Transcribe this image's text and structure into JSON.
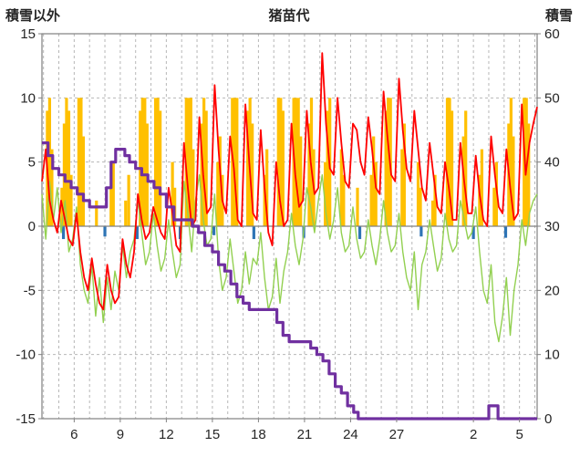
{
  "chart_data": {
    "type": "line",
    "title": "猪苗代",
    "left_axis": {
      "title": "積雪以外",
      "min": -15,
      "max": 15,
      "ticks": [
        15,
        10,
        5,
        0,
        -5,
        -10,
        -15
      ]
    },
    "right_axis": {
      "title": "積雪",
      "min": 0,
      "max": 60,
      "ticks": [
        60,
        50,
        40,
        30,
        20,
        10,
        0
      ]
    },
    "x_axis": {
      "day_min": 3.9,
      "day_max": 36.15,
      "tick_days": [
        6,
        9,
        12,
        15,
        18,
        21,
        24,
        27,
        32,
        35
      ],
      "tick_labels": [
        "6",
        "9",
        "12",
        "15",
        "18",
        "21",
        "24",
        "27",
        "2",
        "5"
      ],
      "grid_day_from": 4,
      "grid_day_to": 36
    },
    "style": {
      "grid_color": "#b7b7b7",
      "axis_color": "#808080",
      "text_color": "#262626",
      "background": "#ffffff"
    },
    "series": [
      {
        "name": "sunshine-bars",
        "color": "#FFC000",
        "axis": "left",
        "type": "bar",
        "bar_width": 3.2,
        "bars": [
          [
            4.25,
            9
          ],
          [
            4.4,
            10
          ],
          [
            4.55,
            6
          ],
          [
            5.2,
            3
          ],
          [
            5.35,
            8
          ],
          [
            5.5,
            10
          ],
          [
            5.65,
            9
          ],
          [
            5.8,
            4
          ],
          [
            6.3,
            10
          ],
          [
            6.45,
            10
          ],
          [
            6.6,
            7
          ],
          [
            7.45,
            2
          ],
          [
            8.4,
            3
          ],
          [
            8.55,
            5
          ],
          [
            9.35,
            2
          ],
          [
            9.55,
            4
          ],
          [
            10.3,
            9
          ],
          [
            10.45,
            10
          ],
          [
            10.6,
            10
          ],
          [
            10.75,
            8
          ],
          [
            11.3,
            10
          ],
          [
            11.45,
            10
          ],
          [
            11.6,
            9
          ],
          [
            12.4,
            5
          ],
          [
            12.55,
            3
          ],
          [
            13.3,
            10
          ],
          [
            13.45,
            10
          ],
          [
            13.6,
            10
          ],
          [
            13.75,
            6
          ],
          [
            14.3,
            8
          ],
          [
            14.45,
            10
          ],
          [
            14.6,
            9
          ],
          [
            15.35,
            5
          ],
          [
            15.5,
            7
          ],
          [
            15.65,
            4
          ],
          [
            16.3,
            10
          ],
          [
            16.45,
            10
          ],
          [
            16.6,
            10
          ],
          [
            17.3,
            9
          ],
          [
            17.45,
            10
          ],
          [
            17.6,
            8
          ],
          [
            18.4,
            4
          ],
          [
            18.55,
            6
          ],
          [
            19.3,
            10
          ],
          [
            19.45,
            10
          ],
          [
            19.6,
            9
          ],
          [
            20.3,
            10
          ],
          [
            20.45,
            10
          ],
          [
            20.6,
            10
          ],
          [
            20.75,
            7
          ],
          [
            21.3,
            8
          ],
          [
            21.45,
            10
          ],
          [
            21.6,
            6
          ],
          [
            22.35,
            5
          ],
          [
            22.5,
            9
          ],
          [
            22.65,
            10
          ],
          [
            23.4,
            6
          ],
          [
            23.55,
            4
          ],
          [
            24.45,
            3
          ],
          [
            25.35,
            4
          ],
          [
            25.5,
            7
          ],
          [
            25.65,
            5
          ],
          [
            26.3,
            9
          ],
          [
            26.45,
            10
          ],
          [
            26.6,
            10
          ],
          [
            27.35,
            6
          ],
          [
            27.5,
            8
          ],
          [
            28.4,
            5
          ],
          [
            28.55,
            3
          ],
          [
            29.35,
            2
          ],
          [
            29.5,
            4
          ],
          [
            30.3,
            10
          ],
          [
            30.45,
            10
          ],
          [
            30.6,
            9
          ],
          [
            31.35,
            7
          ],
          [
            31.5,
            9
          ],
          [
            32.4,
            4
          ],
          [
            32.55,
            6
          ],
          [
            33.35,
            3
          ],
          [
            33.5,
            5
          ],
          [
            34.3,
            8
          ],
          [
            34.45,
            10
          ],
          [
            34.6,
            7
          ],
          [
            35.3,
            10
          ],
          [
            35.45,
            10
          ],
          [
            35.6,
            8
          ]
        ]
      },
      {
        "name": "precip-bars",
        "color": "#2E74B5",
        "axis": "left",
        "type": "bar",
        "bar_width": 3.2,
        "bars": [
          [
            5.3,
            -1
          ],
          [
            8.0,
            -0.8
          ],
          [
            10.1,
            -1
          ],
          [
            12.9,
            -1
          ],
          [
            15.1,
            -0.7
          ],
          [
            17.7,
            -1
          ],
          [
            20.95,
            -0.9
          ],
          [
            24.6,
            -1
          ],
          [
            28.6,
            -0.8
          ],
          [
            32.0,
            -1
          ],
          [
            34.1,
            -0.9
          ]
        ]
      },
      {
        "name": "green-line",
        "color": "#92D050",
        "axis": "left",
        "type": "line",
        "width": 1.4,
        "x0": 3.9,
        "dx": 0.25,
        "y": [
          2.5,
          -1.0,
          3.5,
          0.5,
          3.0,
          -0.5,
          2.0,
          -2.0,
          -1.0,
          1.5,
          -3.0,
          -5.0,
          -6.0,
          -3.0,
          -7.0,
          -4.0,
          -7.5,
          -4.0,
          -6.5,
          -3.5,
          -5.0,
          -1.5,
          -4.0,
          -2.0,
          -1.0,
          2.0,
          -0.5,
          -3.0,
          -2.0,
          1.0,
          -1.5,
          -3.5,
          -2.5,
          0.5,
          -2.0,
          -4.0,
          -3.0,
          3.5,
          1.0,
          -2.0,
          2.0,
          4.0,
          0.5,
          -1.5,
          -1.0,
          2.5,
          -2.5,
          -5.0,
          -4.0,
          -1.0,
          -3.5,
          -6.0,
          -5.0,
          -2.0,
          -4.5,
          -2.5,
          -3.0,
          -0.5,
          -4.0,
          -6.5,
          -5.5,
          -2.5,
          -6.0,
          -3.5,
          -2.0,
          1.0,
          -1.5,
          -3.0,
          -1.0,
          3.0,
          1.5,
          -0.5,
          2.0,
          4.0,
          1.0,
          -1.0,
          0.5,
          3.0,
          -0.5,
          -2.0,
          -1.5,
          1.5,
          -1.0,
          -2.5,
          -2.0,
          0.5,
          -1.5,
          -3.0,
          -1.0,
          2.0,
          -0.5,
          -2.0,
          -1.5,
          1.0,
          -2.0,
          -4.0,
          -5.0,
          -2.0,
          -6.5,
          -3.0,
          -2.0,
          0.5,
          -1.5,
          -3.5,
          -2.5,
          1.0,
          -1.0,
          -2.0,
          -1.5,
          2.0,
          0.5,
          -1.0,
          -0.5,
          1.5,
          -2.0,
          -5.0,
          -6.0,
          -3.0,
          -7.5,
          -9.0,
          -7.0,
          -4.0,
          -8.5,
          -5.0,
          -3.0,
          0.5,
          -1.5,
          1.0,
          2.0,
          2.5
        ]
      },
      {
        "name": "temperature-line",
        "color": "#FF0000",
        "axis": "left",
        "type": "line",
        "width": 1.8,
        "x0": 3.9,
        "dx": 0.25,
        "y": [
          3.5,
          6.0,
          2.0,
          0.5,
          -0.5,
          2.0,
          0.5,
          -1.0,
          -1.5,
          1.0,
          -2.0,
          -4.0,
          -5.0,
          -2.5,
          -4.5,
          -6.0,
          -6.5,
          -3.0,
          -5.0,
          -6.0,
          -5.5,
          -1.0,
          -3.0,
          -4.0,
          -2.0,
          2.5,
          0.5,
          -1.0,
          -0.5,
          1.5,
          0.5,
          -0.5,
          -1.0,
          3.0,
          1.0,
          -1.5,
          -2.0,
          6.5,
          3.0,
          0.0,
          0.5,
          8.5,
          4.0,
          1.0,
          1.5,
          11.0,
          6.0,
          2.0,
          1.0,
          7.0,
          4.5,
          0.5,
          0.0,
          9.5,
          5.0,
          1.0,
          0.5,
          7.5,
          3.0,
          -0.5,
          -1.5,
          5.0,
          2.0,
          0.0,
          0.5,
          8.0,
          4.0,
          1.5,
          2.0,
          9.0,
          5.0,
          2.5,
          3.0,
          13.5,
          8.0,
          4.5,
          4.0,
          10.0,
          6.5,
          3.5,
          3.0,
          8.0,
          7.5,
          5.0,
          4.0,
          8.5,
          6.0,
          3.0,
          2.5,
          10.5,
          7.0,
          4.0,
          3.5,
          11.5,
          7.5,
          4.5,
          3.5,
          9.0,
          6.0,
          3.0,
          2.0,
          6.5,
          4.0,
          1.5,
          1.0,
          5.0,
          3.0,
          0.5,
          0.5,
          6.5,
          3.5,
          1.0,
          1.0,
          5.5,
          2.5,
          0.5,
          0.0,
          7.0,
          4.0,
          1.5,
          1.0,
          6.0,
          3.0,
          0.5,
          1.0,
          9.5,
          4.0,
          6.5,
          8.0,
          9.3
        ]
      },
      {
        "name": "snow-depth-line",
        "color": "#7030A0",
        "axis": "right",
        "type": "step",
        "width": 3.2,
        "x": [
          3.9,
          4.3,
          4.6,
          5.0,
          5.4,
          5.8,
          6.2,
          6.6,
          7.0,
          7.8,
          8.1,
          8.4,
          8.7,
          9.3,
          9.6,
          10.0,
          10.4,
          10.8,
          11.2,
          11.6,
          12.0,
          12.5,
          13.3,
          13.7,
          14.1,
          14.5,
          15.0,
          15.4,
          15.8,
          16.2,
          16.6,
          17.0,
          17.4,
          18.8,
          19.2,
          19.6,
          20.0,
          21.0,
          21.4,
          21.8,
          22.2,
          22.6,
          23.0,
          23.4,
          23.8,
          24.2,
          24.5,
          32.9,
          33.0,
          33.5,
          33.6,
          36.15
        ],
        "y": [
          43,
          41,
          39,
          38,
          37,
          36,
          35,
          34,
          33,
          33,
          36,
          40,
          42,
          41,
          40,
          39,
          38,
          37,
          36,
          35,
          33,
          31,
          31,
          30,
          29,
          27,
          26,
          24,
          23,
          21,
          19,
          18,
          17,
          17,
          15,
          13,
          12,
          12,
          11,
          10,
          9,
          7,
          5,
          4,
          2,
          1,
          0,
          0,
          2,
          2,
          0,
          0
        ]
      }
    ]
  }
}
